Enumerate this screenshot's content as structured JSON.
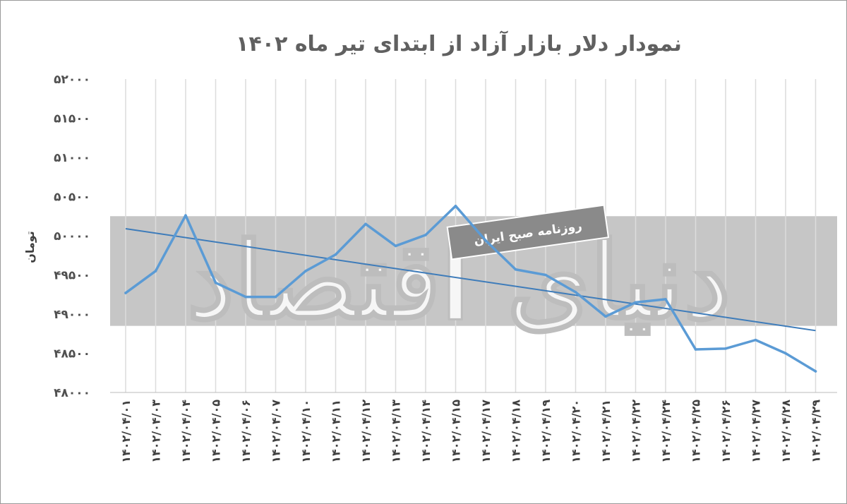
{
  "chart_data": {
    "type": "line",
    "title": "نمودار دلار بازار آزاد از ابتدای تیر ماه ۱۴۰۲",
    "ylabel": "تومان",
    "xlabel": "",
    "ylim": [
      48000,
      52000
    ],
    "yticks": [
      48000,
      48500,
      49000,
      49500,
      50000,
      50500,
      51000,
      51500,
      52000
    ],
    "ytick_labels": [
      "۴۸۰۰۰",
      "۴۸۵۰۰",
      "۴۹۰۰۰",
      "۴۹۵۰۰",
      "۵۰۰۰۰",
      "۵۰۵۰۰",
      "۵۱۰۰۰",
      "۵۱۵۰۰",
      "۵۲۰۰۰"
    ],
    "categories": [
      "۱۴۰۲/۰۴/۰۱",
      "۱۴۰۲/۰۴/۰۳",
      "۱۴۰۲/۰۴/۰۴",
      "۱۴۰۲/۰۴/۰۵",
      "۱۴۰۲/۰۴/۰۶",
      "۱۴۰۲/۰۴/۰۷",
      "۱۴۰۲/۰۴/۱۰",
      "۱۴۰۲/۰۴/۱۱",
      "۱۴۰۲/۰۴/۱۲",
      "۱۴۰۲/۰۴/۱۳",
      "۱۴۰۲/۰۴/۱۴",
      "۱۴۰۲/۰۴/۱۵",
      "۱۴۰۲/۰۴/۱۷",
      "۱۴۰۲/۰۴/۱۸",
      "۱۴۰۲/۰۴/۱۹",
      "۱۴۰۲/۰۴/۲۰",
      "۱۴۰۲/۰۴/۲۱",
      "۱۴۰۲/۰۴/۲۲",
      "۱۴۰۲/۰۴/۲۴",
      "۱۴۰۲/۰۴/۲۵",
      "۱۴۰۲/۰۴/۲۶",
      "۱۴۰۲/۰۴/۲۷",
      "۱۴۰۲/۰۴/۲۸",
      "۱۴۰۲/۰۴/۲۹"
    ],
    "series": [
      {
        "values": [
          49270,
          49550,
          50260,
          49400,
          49220,
          49220,
          49550,
          49760,
          50150,
          49870,
          50010,
          50380,
          49940,
          49570,
          49500,
          49280,
          48970,
          49150,
          49190,
          48550,
          48560,
          48670,
          48500,
          48270
        ],
        "color": "#5b9bd5"
      }
    ],
    "trendline": {
      "start": 50090,
      "end": 48790,
      "color": "#3e7cba"
    },
    "band": {
      "from": 48850,
      "to": 50250,
      "color": "#c6c6c6"
    },
    "grid": "vertical",
    "legend": "none"
  },
  "watermark": {
    "text": "دنیای اقتصاد",
    "stamp": "روزنامه صبح ایران"
  }
}
